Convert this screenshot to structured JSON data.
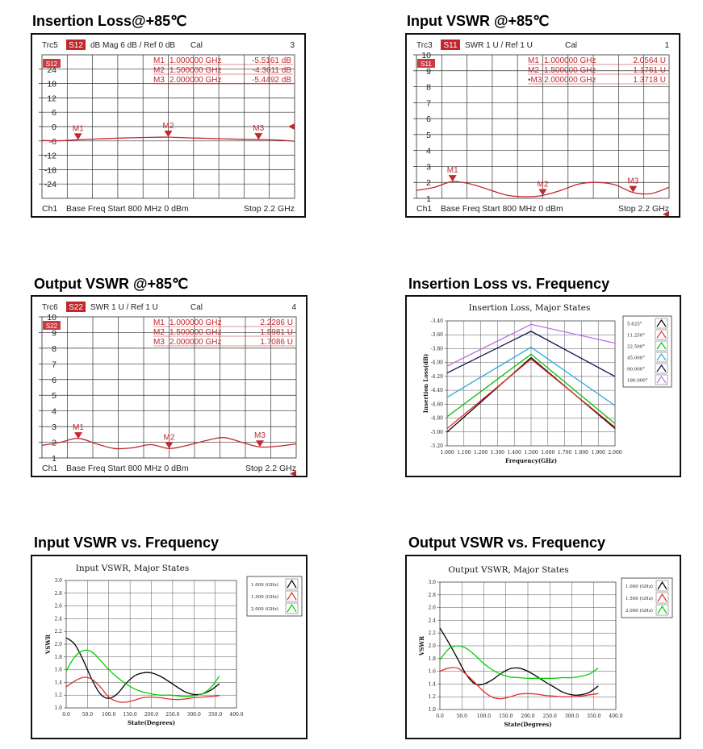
{
  "panels": [
    {
      "title": "Insertion Loss@+85℃",
      "chart_data": {
        "type": "line",
        "instrument": "vna",
        "header": {
          "trace": "Trc5",
          "param": "S12",
          "format": "dB Mag",
          "scale": "6 dB /",
          "ref": "Ref 0 dB",
          "cal": "Cal",
          "num": "3"
        },
        "footer": {
          "channel": "Ch1",
          "left": "Base Freq  Start  800 MHz  0 dBm",
          "right": "Stop  2.2 GHz"
        },
        "ytick_labels": [
          "24",
          "18",
          "12",
          "6",
          "0",
          "-6",
          "-12",
          "-18",
          "-24"
        ],
        "ylim": [
          -30,
          30
        ],
        "xlim": [
          0.8,
          2.2
        ],
        "markers": [
          {
            "name": "M1",
            "label": "M1",
            "freq_text": "1.000000 GHz",
            "value_text": "-5.5161 dB",
            "x": 1.0,
            "y": -5.5161
          },
          {
            "name": "M2",
            "label": "M2",
            "freq_text": "1.500000 GHz",
            "value_text": "-4.3611 dB",
            "x": 1.5,
            "y": -4.3611
          },
          {
            "name": "M3",
            "label": "M3",
            "freq_text": "2.000000 GHz",
            "value_text": "-5.4492 dB",
            "x": 2.0,
            "y": -5.4492
          }
        ],
        "series": [
          {
            "x": [
              0.8,
              0.9,
              1.0,
              1.1,
              1.2,
              1.3,
              1.4,
              1.5,
              1.6,
              1.7,
              1.8,
              1.9,
              2.0,
              2.1,
              2.2
            ],
            "y": [
              -5.8,
              -5.9,
              -5.5,
              -5.2,
              -4.9,
              -4.7,
              -4.5,
              -4.4,
              -4.7,
              -4.9,
              -5.1,
              -5.3,
              -5.45,
              -5.6,
              -6.1
            ]
          }
        ],
        "ref_label": "S12",
        "grid": true
      }
    },
    {
      "title": "Input VSWR @+85℃",
      "chart_data": {
        "type": "line",
        "instrument": "vna",
        "header": {
          "trace": "Trc3",
          "param": "S11",
          "format": "SWR",
          "scale": "1 U /",
          "ref": "Ref 1 U",
          "cal": "Cal",
          "num": "1"
        },
        "footer": {
          "channel": "Ch1",
          "left": "Base Freq  Start  800 MHz  0 dBm",
          "right": "Stop  2.2 GHz"
        },
        "ytick_labels": [
          "10",
          "9",
          "8",
          "7",
          "6",
          "5",
          "4",
          "3",
          "2",
          "1"
        ],
        "ylim": [
          1,
          10
        ],
        "xlim": [
          0.8,
          2.2
        ],
        "markers": [
          {
            "name": "M1",
            "label": "M1",
            "freq_text": "1.000000 GHz",
            "value_text": "2.0564  U",
            "x": 1.0,
            "y": 2.0564
          },
          {
            "name": "M2",
            "label": "M2",
            "freq_text": "1.500000 GHz",
            "value_text": "1.1761  U",
            "x": 1.5,
            "y": 1.1761
          },
          {
            "name": "M3",
            "label": "•M3",
            "freq_text": "2.000000 GHz",
            "value_text": "1.3718  U",
            "x": 2.0,
            "y": 1.3718
          }
        ],
        "series": [
          {
            "x": [
              0.8,
              0.9,
              1.0,
              1.1,
              1.2,
              1.3,
              1.4,
              1.5,
              1.6,
              1.7,
              1.8,
              1.9,
              2.0,
              2.1,
              2.2
            ],
            "y": [
              1.5,
              1.7,
              2.05,
              1.9,
              1.55,
              1.2,
              1.1,
              1.18,
              1.5,
              1.9,
              2.0,
              1.85,
              1.37,
              1.3,
              1.7
            ]
          }
        ],
        "ref_label": "S11",
        "grid": true
      }
    },
    {
      "title": "Output VSWR @+85℃",
      "chart_data": {
        "type": "line",
        "instrument": "vna",
        "header": {
          "trace": "Trc6",
          "param": "S22",
          "format": "SWR",
          "scale": "1 U /",
          "ref": "Ref 1 U",
          "cal": "Cal",
          "num": "4"
        },
        "footer": {
          "channel": "Ch1",
          "left": "Base Freq  Start  800 MHz  0 dBm",
          "right": "Stop  2.2 GHz"
        },
        "ytick_labels": [
          "10",
          "9",
          "8",
          "7",
          "6",
          "5",
          "4",
          "3",
          "2",
          "1"
        ],
        "ylim": [
          1,
          10
        ],
        "xlim": [
          0.8,
          2.2
        ],
        "markers": [
          {
            "name": "M1",
            "label": "M1",
            "freq_text": "1.000000 GHz",
            "value_text": "2.2286  U",
            "x": 1.0,
            "y": 2.2286
          },
          {
            "name": "M2",
            "label": "M2",
            "freq_text": "1.500000 GHz",
            "value_text": "1.5981  U",
            "x": 1.5,
            "y": 1.5981
          },
          {
            "name": "M3",
            "label": "M3",
            "freq_text": "2.000000 GHz",
            "value_text": "1.7086  U",
            "x": 2.0,
            "y": 1.7086
          }
        ],
        "series": [
          {
            "x": [
              0.8,
              0.9,
              1.0,
              1.1,
              1.2,
              1.3,
              1.4,
              1.5,
              1.6,
              1.7,
              1.8,
              1.9,
              2.0,
              2.1,
              2.2
            ],
            "y": [
              1.8,
              2.0,
              2.25,
              1.9,
              1.6,
              1.65,
              1.85,
              1.6,
              1.8,
              2.1,
              2.3,
              2.0,
              1.7,
              1.75,
              1.9
            ]
          }
        ],
        "ref_label": "S22",
        "grid": true
      }
    },
    {
      "title": "Insertion Loss vs. Frequency",
      "chart_data": {
        "type": "line",
        "instrument": "plot",
        "title": "Insertion Loss, Major States",
        "xlabel": "Frequency(GHz)",
        "ylabel": "Insertion Loss(dB)",
        "xlim": [
          1.0,
          2.0
        ],
        "ylim": [
          -5.2,
          -3.4
        ],
        "xtick_labels": [
          "1.000",
          "1.100",
          "1.200",
          "1.300",
          "1.400",
          "1.500",
          "1.600",
          "1.700",
          "1.800",
          "1.900",
          "2.000"
        ],
        "ytick_labels": [
          "-3.40",
          "-3.60",
          "-3.80",
          "-4.00",
          "-4.20",
          "-4.40",
          "-4.60",
          "-4.80",
          "-5.00",
          "-5.20"
        ],
        "legend_position": "right",
        "series": [
          {
            "name": "5.625°",
            "color": "#000000",
            "x": [
              1.0,
              1.5,
              2.0
            ],
            "y": [
              -5.0,
              -3.93,
              -4.95
            ]
          },
          {
            "name": "11.250°",
            "color": "#e03030",
            "x": [
              1.0,
              1.5,
              2.0
            ],
            "y": [
              -4.95,
              -3.95,
              -4.93
            ]
          },
          {
            "name": "22.500°",
            "color": "#00c000",
            "x": [
              1.0,
              1.5,
              2.0
            ],
            "y": [
              -4.78,
              -3.88,
              -4.88
            ]
          },
          {
            "name": "45.000°",
            "color": "#30a8e0",
            "x": [
              1.0,
              1.5,
              2.0
            ],
            "y": [
              -4.5,
              -3.78,
              -4.62
            ]
          },
          {
            "name": "90.000°",
            "color": "#101050",
            "x": [
              1.0,
              1.5,
              2.0
            ],
            "y": [
              -4.15,
              -3.55,
              -4.2
            ]
          },
          {
            "name": "180.000°",
            "color": "#c070e0",
            "x": [
              1.0,
              1.5,
              2.0
            ],
            "y": [
              -4.05,
              -3.45,
              -3.72
            ]
          }
        ],
        "grid": true
      }
    },
    {
      "title": "Input VSWR vs. Frequency",
      "chart_data": {
        "type": "line",
        "instrument": "plot",
        "title": "Input VSWR, Major States",
        "xlabel": "State(Degrees)",
        "ylabel": "VSWR",
        "xlim": [
          0,
          400
        ],
        "ylim": [
          1.0,
          3.0
        ],
        "xtick_labels": [
          "0.0",
          "50.0",
          "100.0",
          "150.0",
          "200.0",
          "250.0",
          "300.0",
          "350.0",
          "400.0"
        ],
        "ytick_labels": [
          "3.0",
          "2.8",
          "2.6",
          "2.4",
          "2.2",
          "2.0",
          "1.8",
          "1.6",
          "1.4",
          "1.2",
          "1.0"
        ],
        "legend_position": "top-right",
        "series": [
          {
            "name": "1.000 (GHz)",
            "color": "#000000",
            "x": [
              0,
              20,
              40,
              60,
              80,
              100,
              120,
              140,
              160,
              180,
              200,
              220,
              240,
              260,
              280,
              300,
              320,
              340,
              360
            ],
            "y": [
              2.1,
              2.0,
              1.75,
              1.45,
              1.22,
              1.15,
              1.22,
              1.38,
              1.5,
              1.55,
              1.55,
              1.5,
              1.42,
              1.33,
              1.25,
              1.21,
              1.22,
              1.28,
              1.38
            ]
          },
          {
            "name": "1.500 (GHz)",
            "color": "#e03030",
            "x": [
              0,
              20,
              40,
              60,
              80,
              100,
              120,
              140,
              160,
              180,
              200,
              220,
              240,
              260,
              280,
              300,
              320,
              340,
              360
            ],
            "y": [
              1.33,
              1.42,
              1.48,
              1.45,
              1.33,
              1.17,
              1.1,
              1.09,
              1.12,
              1.16,
              1.17,
              1.16,
              1.14,
              1.13,
              1.14,
              1.16,
              1.17,
              1.18,
              1.19
            ]
          },
          {
            "name": "2.000 (GHz)",
            "color": "#00d000",
            "x": [
              0,
              20,
              40,
              60,
              80,
              100,
              120,
              140,
              160,
              180,
              200,
              220,
              240,
              260,
              280,
              300,
              320,
              340,
              360
            ],
            "y": [
              1.58,
              1.8,
              1.9,
              1.88,
              1.75,
              1.6,
              1.48,
              1.38,
              1.3,
              1.25,
              1.22,
              1.2,
              1.2,
              1.19,
              1.18,
              1.19,
              1.22,
              1.32,
              1.5
            ]
          }
        ],
        "grid": true
      }
    },
    {
      "title": "Output  VSWR  vs. Frequency",
      "chart_data": {
        "type": "line",
        "instrument": "plot",
        "title": "Output VSWR, Major States",
        "xlabel": "State(Degrees)",
        "ylabel": "VSWR",
        "xlim": [
          0,
          400
        ],
        "ylim": [
          1.0,
          3.0
        ],
        "xtick_labels": [
          "0.0",
          "50.0",
          "100.0",
          "150.0",
          "200.0",
          "250.0",
          "300.0",
          "350.0",
          "400.0"
        ],
        "ytick_labels": [
          "3.0",
          "2.8",
          "2.6",
          "2.4",
          "2.2",
          "2.0",
          "1.8",
          "1.6",
          "1.4",
          "1.2",
          "1.0"
        ],
        "legend_position": "top-right",
        "series": [
          {
            "name": "1.000 (GHz)",
            "color": "#000000",
            "x": [
              0,
              20,
              40,
              60,
              80,
              100,
              120,
              140,
              160,
              180,
              200,
              220,
              240,
              260,
              280,
              300,
              320,
              340,
              360
            ],
            "y": [
              2.28,
              2.05,
              1.8,
              1.55,
              1.4,
              1.4,
              1.47,
              1.57,
              1.64,
              1.65,
              1.6,
              1.52,
              1.43,
              1.35,
              1.27,
              1.23,
              1.23,
              1.27,
              1.37
            ]
          },
          {
            "name": "1.500 (GHz)",
            "color": "#e03030",
            "x": [
              0,
              20,
              40,
              60,
              80,
              100,
              120,
              140,
              160,
              180,
              200,
              220,
              240,
              260,
              280,
              300,
              320,
              340,
              360
            ],
            "y": [
              1.6,
              1.65,
              1.65,
              1.55,
              1.42,
              1.28,
              1.19,
              1.17,
              1.2,
              1.24,
              1.25,
              1.24,
              1.22,
              1.21,
              1.2,
              1.2,
              1.21,
              1.23,
              1.25
            ]
          },
          {
            "name": "2.000 (GHz)",
            "color": "#00d000",
            "x": [
              0,
              20,
              40,
              60,
              80,
              100,
              120,
              140,
              160,
              180,
              200,
              220,
              240,
              260,
              280,
              300,
              320,
              340,
              360
            ],
            "y": [
              1.78,
              1.95,
              2.0,
              1.96,
              1.85,
              1.72,
              1.62,
              1.55,
              1.51,
              1.5,
              1.49,
              1.49,
              1.49,
              1.49,
              1.5,
              1.5,
              1.52,
              1.56,
              1.65
            ]
          }
        ],
        "grid": true
      }
    }
  ]
}
